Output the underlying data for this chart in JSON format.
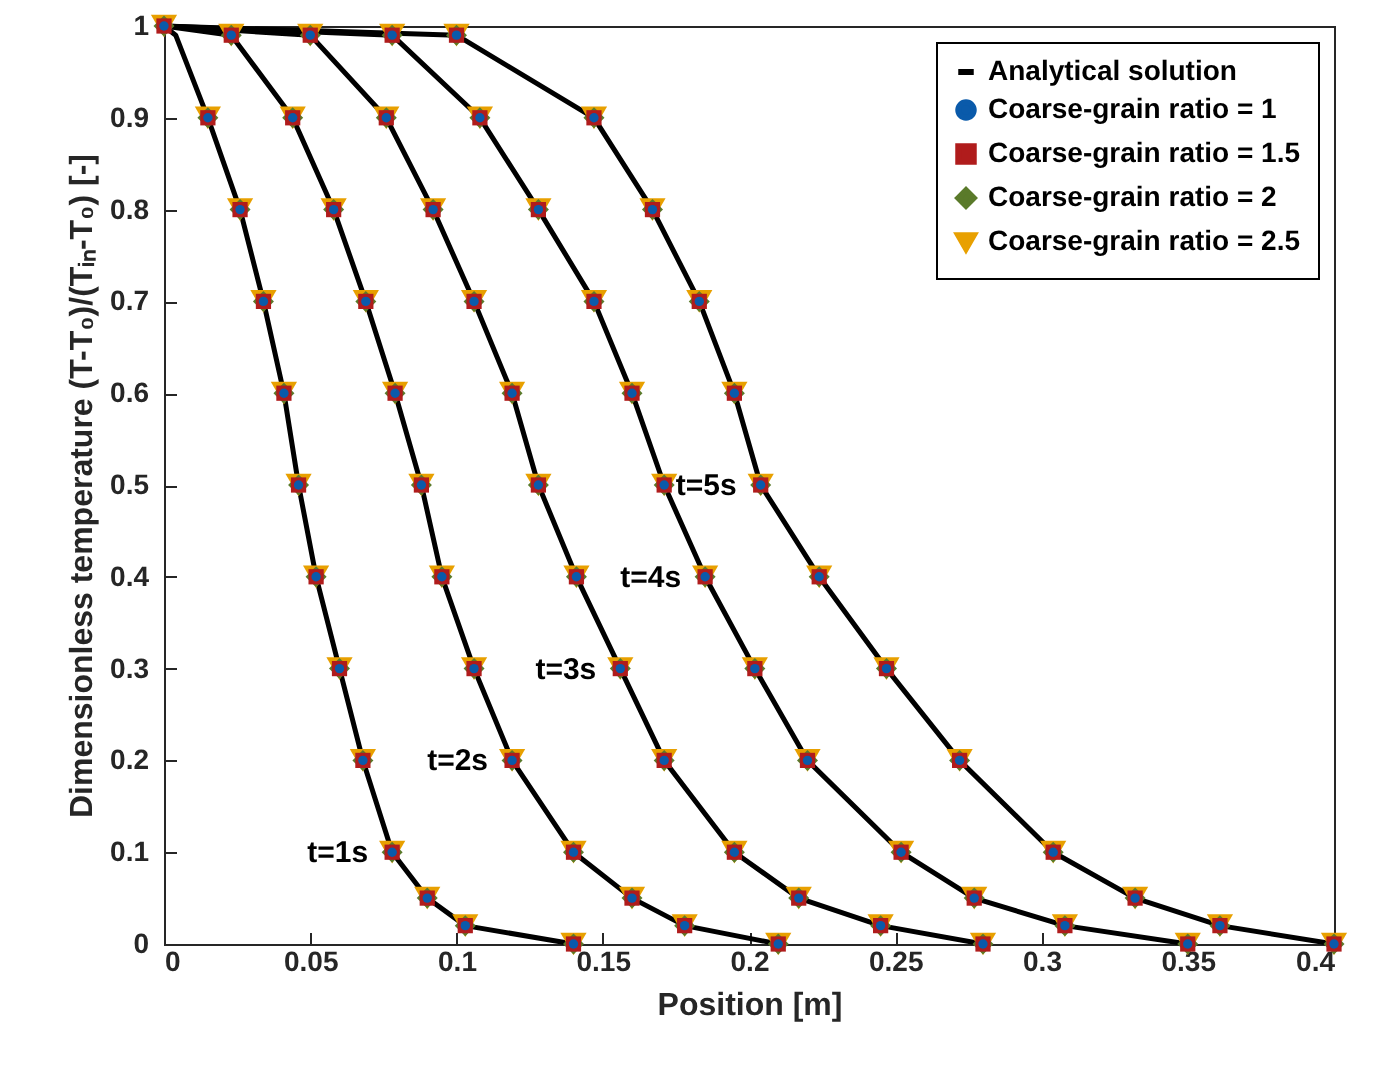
{
  "chart_data": {
    "type": "scatter",
    "xlabel": "Position [m]",
    "ylabel": "Dimensionless temperature (T-T₀)/(Tᵢₙ-T₀) [-]",
    "xlim": [
      0,
      0.4
    ],
    "ylim": [
      0,
      1
    ],
    "xticks": [
      0,
      0.05,
      0.1,
      0.15,
      0.2,
      0.25,
      0.3,
      0.35,
      0.4
    ],
    "yticks": [
      0,
      0.1,
      0.2,
      0.3,
      0.4,
      0.5,
      0.6,
      0.7,
      0.8,
      0.9,
      1
    ],
    "legend": "top right",
    "series": [
      {
        "name": "Analytical solution",
        "type": "line",
        "color": "#000000",
        "x": [
          0,
          0.004,
          0.015,
          0.026,
          0.034,
          0.041,
          0.046,
          0.052,
          0.06,
          0.068,
          0.078,
          0.09,
          0.103,
          0.14,
          null,
          0,
          0.023,
          0.044,
          0.058,
          0.069,
          0.079,
          0.088,
          0.095,
          0.106,
          0.119,
          0.14,
          0.16,
          0.178,
          0.21,
          null,
          0,
          0.05,
          0.076,
          0.092,
          0.106,
          0.119,
          0.128,
          0.141,
          0.156,
          0.171,
          0.195,
          0.217,
          0.245,
          0.28,
          null,
          0,
          0.078,
          0.108,
          0.128,
          0.147,
          0.16,
          0.171,
          0.185,
          0.202,
          0.22,
          0.252,
          0.277,
          0.308,
          0.35,
          null,
          0,
          0.1,
          0.147,
          0.167,
          0.183,
          0.195,
          0.204,
          0.224,
          0.247,
          0.272,
          0.304,
          0.332,
          0.361,
          0.4
        ],
        "values": [
          1,
          0.99,
          0.9,
          0.8,
          0.7,
          0.6,
          0.5,
          0.4,
          0.3,
          0.2,
          0.1,
          0.05,
          0.02,
          0,
          null,
          1,
          0.99,
          0.9,
          0.8,
          0.7,
          0.6,
          0.5,
          0.4,
          0.3,
          0.2,
          0.1,
          0.05,
          0.02,
          0,
          null,
          1,
          0.99,
          0.9,
          0.8,
          0.7,
          0.6,
          0.5,
          0.4,
          0.3,
          0.2,
          0.1,
          0.05,
          0.02,
          0,
          null,
          1,
          0.99,
          0.9,
          0.8,
          0.7,
          0.6,
          0.5,
          0.4,
          0.3,
          0.2,
          0.1,
          0.05,
          0.02,
          0,
          null,
          1,
          0.99,
          0.9,
          0.8,
          0.7,
          0.6,
          0.5,
          0.4,
          0.3,
          0.2,
          0.1,
          0.05,
          0.02,
          0
        ]
      },
      {
        "name": "Coarse-grain ratio = 1",
        "marker": "circle",
        "color": "#0a5aaa",
        "x": [
          0,
          0.015,
          0.026,
          0.034,
          0.041,
          0.046,
          0.052,
          0.06,
          0.068,
          0.078,
          0.09,
          0.103,
          0.14,
          0.023,
          0.044,
          0.058,
          0.069,
          0.079,
          0.088,
          0.095,
          0.106,
          0.119,
          0.14,
          0.16,
          0.178,
          0.21,
          0.05,
          0.076,
          0.092,
          0.106,
          0.119,
          0.128,
          0.141,
          0.156,
          0.171,
          0.195,
          0.217,
          0.245,
          0.28,
          0.078,
          0.108,
          0.128,
          0.147,
          0.16,
          0.171,
          0.185,
          0.202,
          0.22,
          0.252,
          0.277,
          0.308,
          0.35,
          0.1,
          0.147,
          0.167,
          0.183,
          0.195,
          0.204,
          0.224,
          0.247,
          0.272,
          0.304,
          0.332,
          0.361,
          0.4
        ],
        "values": [
          1,
          0.9,
          0.8,
          0.7,
          0.6,
          0.5,
          0.4,
          0.3,
          0.2,
          0.1,
          0.05,
          0.02,
          0,
          0.99,
          0.9,
          0.8,
          0.7,
          0.6,
          0.5,
          0.4,
          0.3,
          0.2,
          0.1,
          0.05,
          0.02,
          0,
          0.99,
          0.9,
          0.8,
          0.7,
          0.6,
          0.5,
          0.4,
          0.3,
          0.2,
          0.1,
          0.05,
          0.02,
          0,
          0.99,
          0.9,
          0.8,
          0.7,
          0.6,
          0.5,
          0.4,
          0.3,
          0.2,
          0.1,
          0.05,
          0.02,
          0,
          0.99,
          0.9,
          0.8,
          0.7,
          0.6,
          0.5,
          0.4,
          0.3,
          0.2,
          0.1,
          0.05,
          0.02,
          0
        ]
      },
      {
        "name": "Coarse-grain ratio = 1.5",
        "marker": "square",
        "color": "#b01c1c",
        "x": [
          0,
          0.015,
          0.026,
          0.034,
          0.041,
          0.046,
          0.052,
          0.06,
          0.068,
          0.078,
          0.09,
          0.103,
          0.14,
          0.023,
          0.044,
          0.058,
          0.069,
          0.079,
          0.088,
          0.095,
          0.106,
          0.119,
          0.14,
          0.16,
          0.178,
          0.21,
          0.05,
          0.076,
          0.092,
          0.106,
          0.119,
          0.128,
          0.141,
          0.156,
          0.171,
          0.195,
          0.217,
          0.245,
          0.28,
          0.078,
          0.108,
          0.128,
          0.147,
          0.16,
          0.171,
          0.185,
          0.202,
          0.22,
          0.252,
          0.277,
          0.308,
          0.35,
          0.1,
          0.147,
          0.167,
          0.183,
          0.195,
          0.204,
          0.224,
          0.247,
          0.272,
          0.304,
          0.332,
          0.361,
          0.4
        ],
        "values": [
          1,
          0.9,
          0.8,
          0.7,
          0.6,
          0.5,
          0.4,
          0.3,
          0.2,
          0.1,
          0.05,
          0.02,
          0,
          0.99,
          0.9,
          0.8,
          0.7,
          0.6,
          0.5,
          0.4,
          0.3,
          0.2,
          0.1,
          0.05,
          0.02,
          0,
          0.99,
          0.9,
          0.8,
          0.7,
          0.6,
          0.5,
          0.4,
          0.3,
          0.2,
          0.1,
          0.05,
          0.02,
          0,
          0.99,
          0.9,
          0.8,
          0.7,
          0.6,
          0.5,
          0.4,
          0.3,
          0.2,
          0.1,
          0.05,
          0.02,
          0,
          0.99,
          0.9,
          0.8,
          0.7,
          0.6,
          0.5,
          0.4,
          0.3,
          0.2,
          0.1,
          0.05,
          0.02,
          0
        ]
      },
      {
        "name": "Coarse-grain ratio = 2",
        "marker": "diamond",
        "color": "#5a7a2a",
        "x": [
          0,
          0.015,
          0.026,
          0.034,
          0.041,
          0.046,
          0.052,
          0.06,
          0.068,
          0.078,
          0.09,
          0.103,
          0.14,
          0.023,
          0.044,
          0.058,
          0.069,
          0.079,
          0.088,
          0.095,
          0.106,
          0.119,
          0.14,
          0.16,
          0.178,
          0.21,
          0.05,
          0.076,
          0.092,
          0.106,
          0.119,
          0.128,
          0.141,
          0.156,
          0.171,
          0.195,
          0.217,
          0.245,
          0.28,
          0.078,
          0.108,
          0.128,
          0.147,
          0.16,
          0.171,
          0.185,
          0.202,
          0.22,
          0.252,
          0.277,
          0.308,
          0.35,
          0.1,
          0.147,
          0.167,
          0.183,
          0.195,
          0.204,
          0.224,
          0.247,
          0.272,
          0.304,
          0.332,
          0.361,
          0.4
        ],
        "values": [
          1,
          0.9,
          0.8,
          0.7,
          0.6,
          0.5,
          0.4,
          0.3,
          0.2,
          0.1,
          0.05,
          0.02,
          0,
          0.99,
          0.9,
          0.8,
          0.7,
          0.6,
          0.5,
          0.4,
          0.3,
          0.2,
          0.1,
          0.05,
          0.02,
          0,
          0.99,
          0.9,
          0.8,
          0.7,
          0.6,
          0.5,
          0.4,
          0.3,
          0.2,
          0.1,
          0.05,
          0.02,
          0,
          0.99,
          0.9,
          0.8,
          0.7,
          0.6,
          0.5,
          0.4,
          0.3,
          0.2,
          0.1,
          0.05,
          0.02,
          0,
          0.99,
          0.9,
          0.8,
          0.7,
          0.6,
          0.5,
          0.4,
          0.3,
          0.2,
          0.1,
          0.05,
          0.02,
          0
        ]
      },
      {
        "name": "Coarse-grain ratio = 2.5",
        "marker": "triangle",
        "color": "#e8a000",
        "x": [
          0,
          0.015,
          0.026,
          0.034,
          0.041,
          0.046,
          0.052,
          0.06,
          0.068,
          0.078,
          0.09,
          0.103,
          0.14,
          0.023,
          0.044,
          0.058,
          0.069,
          0.079,
          0.088,
          0.095,
          0.106,
          0.119,
          0.14,
          0.16,
          0.178,
          0.21,
          0.05,
          0.076,
          0.092,
          0.106,
          0.119,
          0.128,
          0.141,
          0.156,
          0.171,
          0.195,
          0.217,
          0.245,
          0.28,
          0.078,
          0.108,
          0.128,
          0.147,
          0.16,
          0.171,
          0.185,
          0.202,
          0.22,
          0.252,
          0.277,
          0.308,
          0.35,
          0.1,
          0.147,
          0.167,
          0.183,
          0.195,
          0.204,
          0.224,
          0.247,
          0.272,
          0.304,
          0.332,
          0.361,
          0.4
        ],
        "values": [
          1,
          0.9,
          0.8,
          0.7,
          0.6,
          0.5,
          0.4,
          0.3,
          0.2,
          0.1,
          0.05,
          0.02,
          0,
          0.99,
          0.9,
          0.8,
          0.7,
          0.6,
          0.5,
          0.4,
          0.3,
          0.2,
          0.1,
          0.05,
          0.02,
          0,
          0.99,
          0.9,
          0.8,
          0.7,
          0.6,
          0.5,
          0.4,
          0.3,
          0.2,
          0.1,
          0.05,
          0.02,
          0,
          0.99,
          0.9,
          0.8,
          0.7,
          0.6,
          0.5,
          0.4,
          0.3,
          0.2,
          0.1,
          0.05,
          0.02,
          0,
          0.99,
          0.9,
          0.8,
          0.7,
          0.6,
          0.5,
          0.4,
          0.3,
          0.2,
          0.1,
          0.05,
          0.02,
          0
        ]
      }
    ],
    "annotations": [
      "t=1s",
      "t=2s",
      "t=3s",
      "t=4s",
      "t=5s"
    ]
  }
}
